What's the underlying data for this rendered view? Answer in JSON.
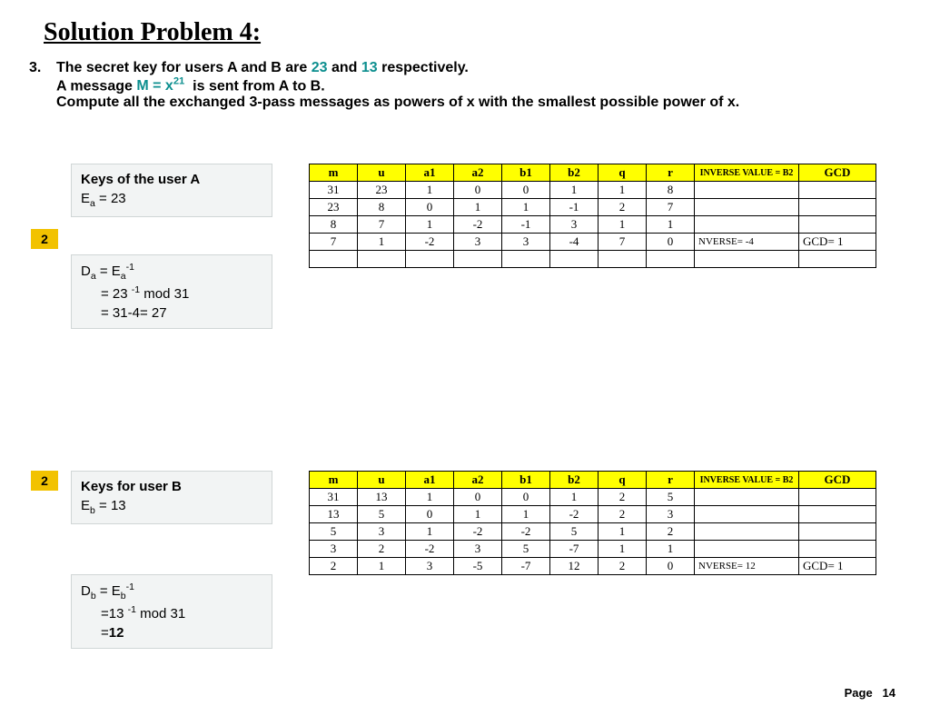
{
  "title": "Solution Problem 4:",
  "problem_num": "3.",
  "problem_text_1a": "The secret key for users A and B are ",
  "key_a_val": "23",
  "problem_text_1b": " and ",
  "key_b_val": "13",
  "problem_text_1c": " respectively.",
  "problem_text_2a": "A message ",
  "msg": "M = x",
  "msg_exp": "21",
  "problem_text_2b": " is sent from A to B.",
  "problem_text_3": "Compute all the exchanged 3-pass messages as powers of x with the smallest possible power of x.",
  "badge_label": "2",
  "boxA_title": "Keys of the user A",
  "boxA_line_pre": "E",
  "boxA_line_sub": "a",
  "boxA_line_post": " = 23",
  "boxDa_l1_pre": "D",
  "boxDa_l1_sub": "a",
  "boxDa_l1_mid": " = E",
  "boxDa_l1_sup": "-1",
  "boxDa_l2_pre": "= 23 ",
  "boxDa_l2_sup": "-1",
  "boxDa_l2_post": " mod 31",
  "boxDa_l3": "= 31-4= 27",
  "boxB_title": "Keys for user B",
  "boxB_line_pre": "E",
  "boxB_line_sub": "b",
  "boxB_line_post": " =  13",
  "boxDb_l1_pre": "D",
  "boxDb_l1_sub": "b",
  "boxDb_l1_mid": " = E",
  "boxDb_l1_sup": "-1",
  "boxDb_l2_pre": "=13 ",
  "boxDb_l2_sup": "-1",
  "boxDb_l2_post": " mod 31",
  "boxDb_l3_pre": "=",
  "boxDb_l3_bold": "12",
  "th": {
    "m": "m",
    "u": "u",
    "a1": "a1",
    "a2": "a2",
    "b1": "b1",
    "b2": "b2",
    "q": "q",
    "r": "r",
    "inv": "INVERSE VALUE = B2",
    "gcd": "GCD"
  },
  "tA": {
    "rows": [
      [
        "31",
        "23",
        "1",
        "0",
        "0",
        "1",
        "1",
        "8",
        "",
        ""
      ],
      [
        "23",
        "8",
        "0",
        "1",
        "1",
        "-1",
        "2",
        "7",
        "",
        ""
      ],
      [
        "8",
        "7",
        "1",
        "-2",
        "-1",
        "3",
        "1",
        "1",
        "",
        ""
      ],
      [
        "7",
        "1",
        "-2",
        "3",
        "3",
        "-4",
        "7",
        "0",
        "NVERSE=    -4",
        "GCD=       1"
      ],
      [
        "",
        "",
        "",
        "",
        "",
        "",
        "",
        "",
        "",
        ""
      ]
    ]
  },
  "tB": {
    "rows": [
      [
        "31",
        "13",
        "1",
        "0",
        "0",
        "1",
        "2",
        "5",
        "",
        ""
      ],
      [
        "13",
        "5",
        "0",
        "1",
        "1",
        "-2",
        "2",
        "3",
        "",
        ""
      ],
      [
        "5",
        "3",
        "1",
        "-2",
        "-2",
        "5",
        "1",
        "2",
        "",
        ""
      ],
      [
        "3",
        "2",
        "-2",
        "3",
        "5",
        "-7",
        "1",
        "1",
        "",
        ""
      ],
      [
        "2",
        "1",
        "3",
        "-5",
        "-7",
        "12",
        "2",
        "0",
        "NVERSE=    12",
        "GCD=       1"
      ]
    ]
  },
  "footer_label": "Page",
  "footer_num": "14"
}
